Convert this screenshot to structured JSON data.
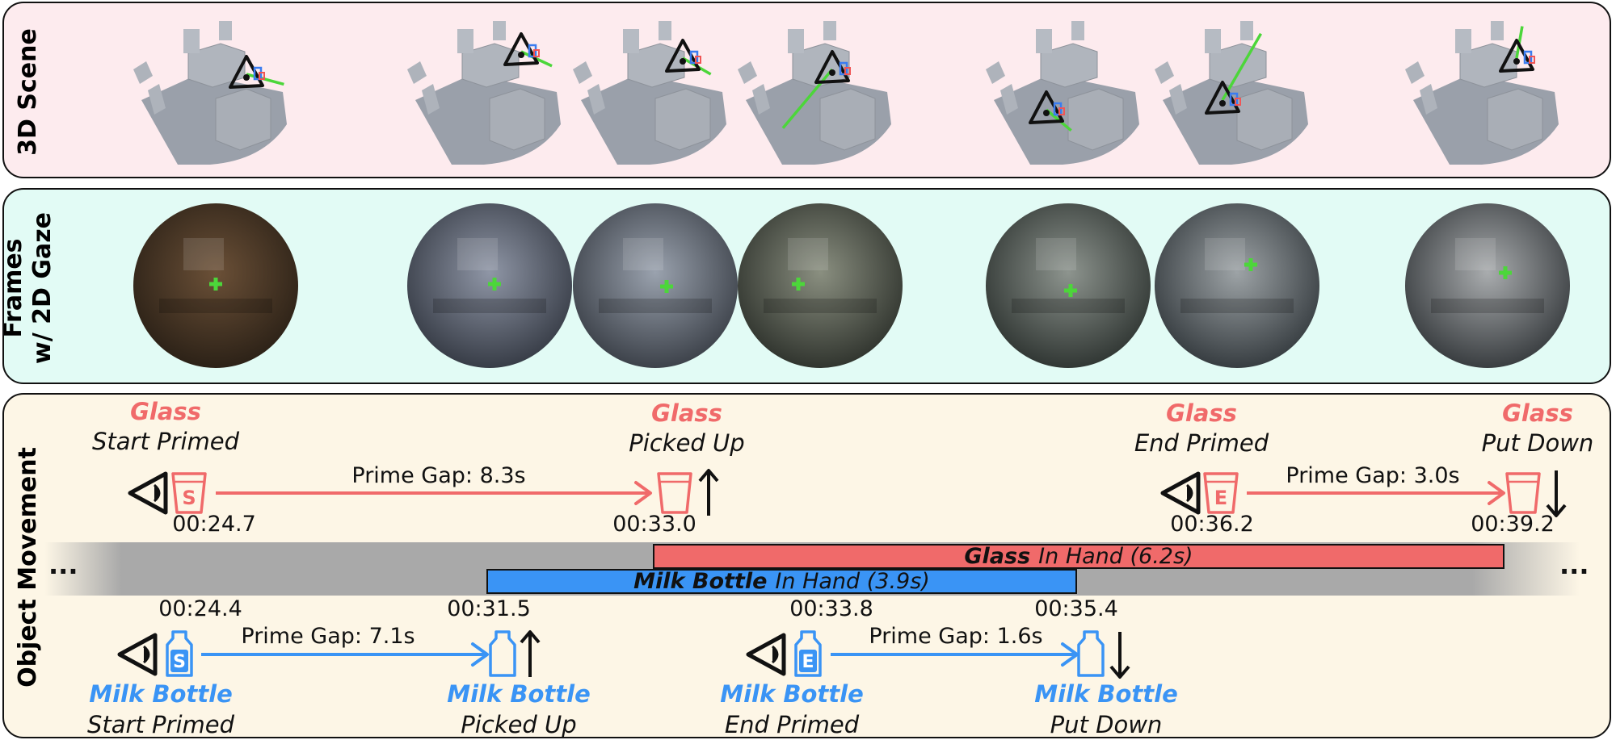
{
  "panels": {
    "scene_label": "3D Scene",
    "frames_label_line1": "Frames",
    "frames_label_line2": "w/ 2D Gaze",
    "movement_label": "Object Movement"
  },
  "colors": {
    "glass": "#f06a6a",
    "milk": "#3a94f5",
    "gaze": "#4cd63a",
    "timeline": "#a9a9a9"
  },
  "icons": {
    "eye": "eye-icon",
    "glass": "glass-icon",
    "bottle": "milk-bottle-icon",
    "up": "arrow-up-icon",
    "down": "arrow-down-icon"
  },
  "glass_events": [
    {
      "name": "Glass",
      "desc": "Start Primed",
      "time": "00:24.7",
      "badge": "S"
    },
    {
      "name": "Glass",
      "desc": "Picked Up",
      "time": "00:33.0"
    },
    {
      "name": "Glass",
      "desc": "End Primed",
      "time": "00:36.2",
      "badge": "E"
    },
    {
      "name": "Glass",
      "desc": "Put Down",
      "time": "00:39.2"
    }
  ],
  "glass_gaps": [
    "Prime Gap: 8.3s",
    "Prime Gap: 3.0s"
  ],
  "milk_events": [
    {
      "name": "Milk Bottle",
      "desc": "Start Primed",
      "time": "00:24.4",
      "badge": "S"
    },
    {
      "name": "Milk Bottle",
      "desc": "Picked Up",
      "time": "00:31.5"
    },
    {
      "name": "Milk Bottle",
      "desc": "End Primed",
      "time": "00:33.8",
      "badge": "E"
    },
    {
      "name": "Milk Bottle",
      "desc": "Put Down",
      "time": "00:35.4"
    }
  ],
  "milk_gaps": [
    "Prime Gap: 7.1s",
    "Prime Gap: 1.6s"
  ],
  "bars": {
    "glass": {
      "object": "Glass",
      "label": "In Hand (6.2s)"
    },
    "milk": {
      "object": "Milk Bottle",
      "label": "In Hand (3.9s)"
    }
  },
  "ellipsis": "..."
}
